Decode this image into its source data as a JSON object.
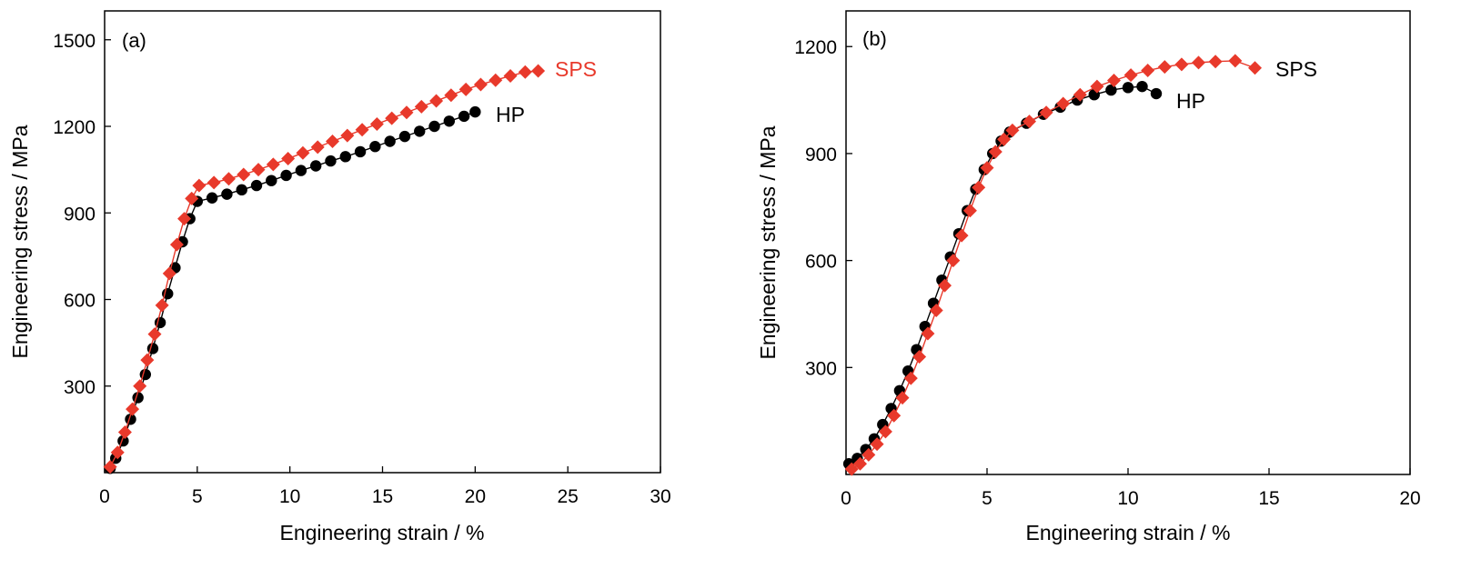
{
  "figure": {
    "colors": {
      "hp": "#000000",
      "sps": "#e8392b",
      "axis": "#000000"
    }
  },
  "chart_data": [
    {
      "panel": "(a)",
      "type": "scatter",
      "xlabel": "Engineering strain / %",
      "ylabel": "Engineering stress / MPa",
      "xlim": [
        0,
        30
      ],
      "ylim": [
        0,
        1600
      ],
      "xticks": [
        0,
        5,
        10,
        15,
        20,
        25,
        30
      ],
      "yticks": [
        300,
        600,
        900,
        1200,
        1500
      ],
      "grid": false,
      "series": [
        {
          "name": "HP",
          "marker": "circle",
          "color": "#000000",
          "x": [
            0.3,
            0.6,
            1.0,
            1.4,
            1.8,
            2.2,
            2.6,
            3.0,
            3.4,
            3.8,
            4.2,
            4.6,
            5.0,
            5.8,
            6.6,
            7.4,
            8.2,
            9.0,
            9.8,
            10.6,
            11.4,
            12.2,
            13.0,
            13.8,
            14.6,
            15.4,
            16.2,
            17.0,
            17.8,
            18.6,
            19.4,
            20.0
          ],
          "y": [
            15,
            50,
            110,
            185,
            260,
            340,
            430,
            520,
            620,
            710,
            800,
            880,
            940,
            952,
            965,
            980,
            995,
            1012,
            1030,
            1047,
            1063,
            1080,
            1095,
            1112,
            1130,
            1148,
            1165,
            1183,
            1200,
            1218,
            1235,
            1250
          ]
        },
        {
          "name": "SPS",
          "marker": "diamond",
          "color": "#e8392b",
          "x": [
            0.3,
            0.7,
            1.1,
            1.5,
            1.9,
            2.3,
            2.7,
            3.1,
            3.5,
            3.9,
            4.3,
            4.7,
            5.1,
            5.9,
            6.7,
            7.5,
            8.3,
            9.1,
            9.9,
            10.7,
            11.5,
            12.3,
            13.1,
            13.9,
            14.7,
            15.5,
            16.3,
            17.1,
            17.9,
            18.7,
            19.5,
            20.3,
            21.1,
            21.9,
            22.7,
            23.4
          ],
          "y": [
            20,
            70,
            140,
            220,
            300,
            390,
            480,
            580,
            690,
            790,
            880,
            950,
            995,
            1005,
            1018,
            1033,
            1050,
            1068,
            1088,
            1108,
            1128,
            1148,
            1168,
            1188,
            1208,
            1228,
            1248,
            1268,
            1288,
            1308,
            1328,
            1345,
            1360,
            1375,
            1388,
            1392
          ]
        }
      ]
    },
    {
      "panel": "(b)",
      "type": "scatter",
      "xlabel": "Engineering strain / %",
      "ylabel": "Engineering stress / MPa",
      "xlim": [
        0,
        20
      ],
      "ylim": [
        0,
        1300
      ],
      "xticks": [
        0,
        5,
        10,
        15,
        20
      ],
      "yticks": [
        300,
        600,
        900,
        1200
      ],
      "grid": false,
      "series": [
        {
          "name": "HP",
          "marker": "circle",
          "color": "#000000",
          "x": [
            0.1,
            0.4,
            0.7,
            1.0,
            1.3,
            1.6,
            1.9,
            2.2,
            2.5,
            2.8,
            3.1,
            3.4,
            3.7,
            4.0,
            4.3,
            4.6,
            4.9,
            5.2,
            5.5,
            5.8,
            6.4,
            7.0,
            7.6,
            8.2,
            8.8,
            9.4,
            10.0,
            10.5,
            11.0
          ],
          "y": [
            30,
            45,
            70,
            100,
            140,
            185,
            235,
            290,
            350,
            415,
            480,
            545,
            610,
            675,
            740,
            800,
            855,
            900,
            935,
            960,
            985,
            1010,
            1030,
            1050,
            1065,
            1078,
            1085,
            1088,
            1068
          ]
        },
        {
          "name": "SPS",
          "marker": "diamond",
          "color": "#e8392b",
          "x": [
            0.2,
            0.5,
            0.8,
            1.1,
            1.4,
            1.7,
            2.0,
            2.3,
            2.6,
            2.9,
            3.2,
            3.5,
            3.8,
            4.1,
            4.4,
            4.7,
            5.0,
            5.3,
            5.6,
            5.9,
            6.5,
            7.1,
            7.7,
            8.3,
            8.9,
            9.5,
            10.1,
            10.7,
            11.3,
            11.9,
            12.5,
            13.1,
            13.8,
            14.5
          ],
          "y": [
            15,
            30,
            55,
            85,
            120,
            165,
            215,
            270,
            330,
            395,
            460,
            530,
            600,
            670,
            740,
            805,
            860,
            905,
            940,
            965,
            990,
            1015,
            1040,
            1065,
            1088,
            1105,
            1120,
            1133,
            1143,
            1150,
            1155,
            1158,
            1160,
            1140
          ]
        }
      ]
    }
  ]
}
